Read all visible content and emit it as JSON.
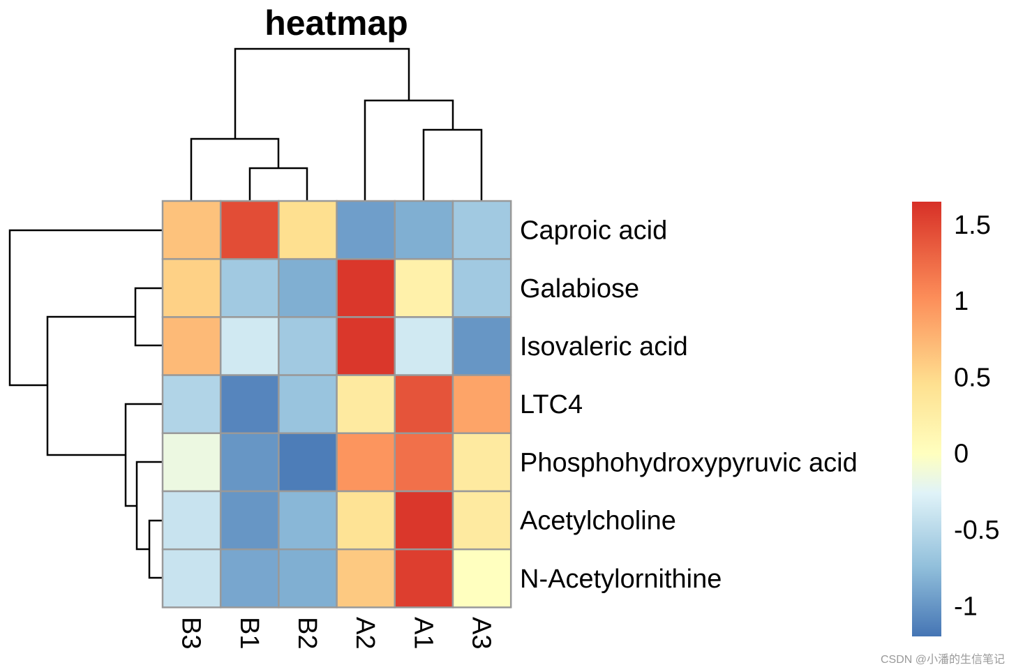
{
  "chart_data": {
    "type": "heatmap",
    "title": "heatmap",
    "columns": [
      "B3",
      "B1",
      "B2",
      "A2",
      "A1",
      "A3"
    ],
    "rows": [
      "Caproic acid",
      "Galabiose",
      "Isovaleric acid",
      "LTC4",
      "Phosphohydroxypyruvic acid",
      "Acetylcholine",
      "N-Acetylornithine"
    ],
    "values": [
      [
        0.65,
        1.45,
        0.45,
        -0.95,
        -0.85,
        -0.65
      ],
      [
        0.55,
        -0.65,
        -0.85,
        1.6,
        0.2,
        -0.65
      ],
      [
        0.7,
        -0.35,
        -0.65,
        1.6,
        -0.35,
        -1.0
      ],
      [
        -0.55,
        -1.1,
        -0.7,
        0.3,
        1.4,
        0.85
      ],
      [
        -0.15,
        -1.0,
        -1.15,
        0.95,
        1.2,
        0.3
      ],
      [
        -0.4,
        -1.0,
        -0.8,
        0.4,
        1.6,
        0.3
      ],
      [
        -0.4,
        -0.9,
        -0.85,
        0.6,
        1.55,
        0.0
      ]
    ],
    "legend": {
      "range": [
        -1.2,
        1.65
      ],
      "ticks": [
        "1.5",
        "1",
        "0.5",
        "0",
        "-0.5",
        "-1"
      ],
      "tick_values": [
        1.5,
        1.0,
        0.5,
        0.0,
        -0.5,
        -1.0
      ],
      "colors": [
        "#4575B4",
        "#91BFDB",
        "#E0F3F8",
        "#FFFFBF",
        "#FEE090",
        "#FC8D59",
        "#D73027"
      ]
    },
    "column_dendrogram": true,
    "row_dendrogram": true
  },
  "watermark": "CSDN @小潘的生信笔记"
}
